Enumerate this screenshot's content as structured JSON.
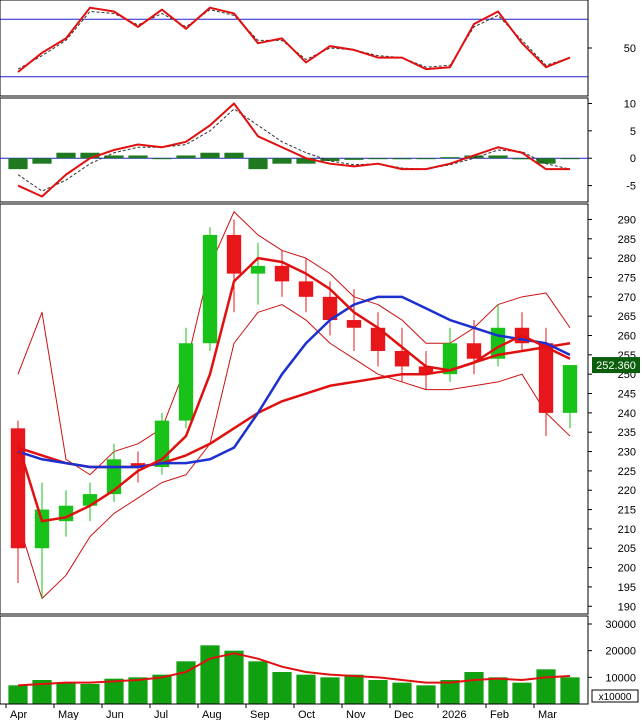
{
  "colors": {
    "frame": "#000000",
    "up_candle": "#19c219",
    "down_candle": "#e8161b",
    "ma_red": "#e01010",
    "ma_blue": "#1c2fcf",
    "band": "#cc1111",
    "hist_pos": "#1f7a1f",
    "rsi_ref": "#2222cc",
    "vol_bar": "#10a010",
    "price_tag_bg": "#0b5e0b",
    "price_tag_fg": "#ffffff"
  },
  "chart_data": [
    {
      "type": "line",
      "panel": "rsi",
      "y_tick_labels": [
        "50"
      ],
      "ylim": [
        0,
        100
      ],
      "reference_lines": [
        80,
        20
      ],
      "x": [
        "Apr",
        "Apr",
        "May",
        "May",
        "Jun",
        "Jun",
        "Jul",
        "Jul",
        "Aug",
        "Aug",
        "Sep",
        "Sep",
        "Oct",
        "Oct",
        "Nov",
        "Nov",
        "Dec",
        "Dec",
        "2026",
        "2026",
        "Feb",
        "Feb",
        "Mar",
        "Mar"
      ],
      "series": [
        {
          "values": [
            25,
            45,
            60,
            92,
            88,
            72,
            90,
            70,
            92,
            86,
            55,
            60,
            35,
            52,
            48,
            40,
            40,
            28,
            30,
            75,
            88,
            55,
            30,
            40
          ]
        },
        {
          "values": [
            28,
            42,
            58,
            88,
            86,
            74,
            86,
            72,
            90,
            84,
            58,
            58,
            38,
            50,
            48,
            42,
            40,
            30,
            32,
            72,
            84,
            58,
            32,
            40
          ]
        }
      ]
    },
    {
      "type": "line",
      "panel": "macd",
      "y_tick_labels": [
        "10",
        "5",
        "0",
        "-5"
      ],
      "ylim": [
        -8,
        11
      ],
      "x": [
        "Apr",
        "Apr",
        "May",
        "May",
        "Jun",
        "Jun",
        "Jul",
        "Jul",
        "Aug",
        "Aug",
        "Sep",
        "Sep",
        "Oct",
        "Oct",
        "Nov",
        "Nov",
        "Dec",
        "Dec",
        "2026",
        "2026",
        "Feb",
        "Feb",
        "Mar",
        "Mar"
      ],
      "series": [
        {
          "values": [
            -5,
            -7,
            -3,
            0,
            1.5,
            2.5,
            2,
            3,
            6,
            10,
            4,
            2,
            0,
            -1,
            -1.5,
            -1,
            -2,
            -2,
            -1,
            0.5,
            2,
            1,
            -2,
            -2
          ]
        },
        {
          "values": [
            -3,
            -6,
            -4,
            -1,
            1,
            2,
            2,
            2.5,
            5,
            9,
            6,
            3,
            1,
            -0.5,
            -1.2,
            -1,
            -1.8,
            -2,
            -1.2,
            0,
            1.5,
            1.2,
            -1,
            -2
          ]
        },
        {
          "values": [
            -2,
            -1,
            1,
            1,
            0.5,
            0.5,
            0,
            0.5,
            1,
            1,
            -2,
            -1,
            -1,
            -0.5,
            -0.3,
            0,
            -0.2,
            0,
            0.2,
            0.5,
            0.5,
            -0.2,
            -1,
            0
          ]
        }
      ]
    },
    {
      "type": "candlestick",
      "panel": "price",
      "ylim": [
        188,
        294
      ],
      "y_tick_labels": [
        "290",
        "285",
        "280",
        "275",
        "270",
        "265",
        "260",
        "255",
        "250",
        "245",
        "240",
        "235",
        "230",
        "225",
        "220",
        "215",
        "210",
        "205",
        "200",
        "195",
        "190"
      ],
      "last_price_label": "252.360",
      "candles": [
        {
          "x": "Apr",
          "o": 236,
          "h": 238,
          "l": 196,
          "c": 205
        },
        {
          "x": "Apr",
          "o": 205,
          "h": 222,
          "l": 192,
          "c": 215
        },
        {
          "x": "May",
          "o": 212,
          "h": 220,
          "l": 208,
          "c": 216
        },
        {
          "x": "May",
          "o": 216,
          "h": 222,
          "l": 212,
          "c": 219
        },
        {
          "x": "Jun",
          "o": 219,
          "h": 232,
          "l": 217,
          "c": 228
        },
        {
          "x": "Jun",
          "o": 227,
          "h": 230,
          "l": 222,
          "c": 226
        },
        {
          "x": "Jul",
          "o": 226,
          "h": 240,
          "l": 224,
          "c": 238
        },
        {
          "x": "Jul",
          "o": 238,
          "h": 262,
          "l": 236,
          "c": 258
        },
        {
          "x": "Aug",
          "o": 258,
          "h": 288,
          "l": 256,
          "c": 286
        },
        {
          "x": "Aug",
          "o": 286,
          "h": 290,
          "l": 266,
          "c": 276
        },
        {
          "x": "Sep",
          "o": 276,
          "h": 284,
          "l": 268,
          "c": 278
        },
        {
          "x": "Sep",
          "o": 278,
          "h": 282,
          "l": 270,
          "c": 274
        },
        {
          "x": "Oct",
          "o": 274,
          "h": 280,
          "l": 266,
          "c": 270
        },
        {
          "x": "Oct",
          "o": 270,
          "h": 274,
          "l": 260,
          "c": 264
        },
        {
          "x": "Nov",
          "o": 264,
          "h": 272,
          "l": 256,
          "c": 262
        },
        {
          "x": "Nov",
          "o": 262,
          "h": 266,
          "l": 252,
          "c": 256
        },
        {
          "x": "Dec",
          "o": 256,
          "h": 262,
          "l": 248,
          "c": 252
        },
        {
          "x": "Dec",
          "o": 252,
          "h": 256,
          "l": 246,
          "c": 250
        },
        {
          "x": "2026",
          "o": 250,
          "h": 262,
          "l": 248,
          "c": 258
        },
        {
          "x": "2026",
          "o": 258,
          "h": 264,
          "l": 250,
          "c": 254
        },
        {
          "x": "Feb",
          "o": 254,
          "h": 268,
          "l": 252,
          "c": 262
        },
        {
          "x": "Feb",
          "o": 262,
          "h": 266,
          "l": 256,
          "c": 258
        },
        {
          "x": "Mar",
          "o": 258,
          "h": 262,
          "l": 234,
          "c": 240
        },
        {
          "x": "Mar",
          "o": 240,
          "h": 252,
          "l": 236,
          "c": 252.36
        }
      ],
      "ma_red_short": [
        232,
        212,
        213,
        216,
        220,
        225,
        228,
        234,
        250,
        274,
        280,
        279,
        276,
        272,
        266,
        262,
        257,
        252,
        251,
        253,
        257,
        260,
        257,
        254
      ],
      "ma_red_long": [
        231,
        229,
        227,
        226,
        226,
        226,
        227,
        229,
        232,
        236,
        240,
        243,
        245,
        247,
        248,
        249,
        250,
        250,
        251,
        253,
        255,
        256,
        257,
        258
      ],
      "ma_blue": [
        230,
        228,
        227,
        226,
        226,
        226,
        227,
        227,
        228,
        231,
        240,
        250,
        258,
        264,
        268,
        270,
        270,
        267,
        264,
        262,
        260,
        259,
        258,
        255
      ],
      "band_upper": [
        250,
        266,
        228,
        224,
        230,
        232,
        236,
        252,
        278,
        292,
        286,
        282,
        280,
        276,
        270,
        268,
        264,
        258,
        258,
        262,
        268,
        270,
        271,
        262
      ],
      "band_lower": [
        212,
        192,
        198,
        208,
        214,
        218,
        222,
        224,
        232,
        258,
        266,
        268,
        264,
        258,
        254,
        250,
        248,
        246,
        246,
        247,
        248,
        250,
        240,
        234
      ]
    },
    {
      "type": "bar",
      "panel": "volume",
      "ylim": [
        0,
        33000
      ],
      "y_tick_labels": [
        "30000",
        "20000",
        "10000"
      ],
      "unit_label": "x10000",
      "x": [
        "Apr",
        "Apr",
        "May",
        "May",
        "Jun",
        "Jun",
        "Jul",
        "Jul",
        "Aug",
        "Aug",
        "Sep",
        "Sep",
        "Oct",
        "Oct",
        "Nov",
        "Nov",
        "Dec",
        "Dec",
        "2026",
        "2026",
        "Feb",
        "Feb",
        "Mar",
        "Mar"
      ],
      "values": [
        7000,
        9000,
        8000,
        7500,
        9500,
        10000,
        11000,
        16000,
        22000,
        20000,
        16000,
        12000,
        11000,
        10000,
        11000,
        9000,
        8000,
        7000,
        9000,
        12000,
        10000,
        8000,
        13000,
        10000
      ],
      "ma": [
        7000,
        7500,
        8000,
        8000,
        8500,
        9000,
        10000,
        12000,
        17000,
        19000,
        17000,
        14000,
        12000,
        11000,
        10500,
        10000,
        9000,
        8000,
        8000,
        9000,
        9500,
        9000,
        10000,
        10500
      ]
    }
  ],
  "x_axis": {
    "months": [
      {
        "label": "Apr",
        "i": 0
      },
      {
        "label": "May",
        "i": 2
      },
      {
        "label": "Jun",
        "i": 4
      },
      {
        "label": "Jul",
        "i": 6
      },
      {
        "label": "Aug",
        "i": 8
      },
      {
        "label": "Sep",
        "i": 10
      },
      {
        "label": "Oct",
        "i": 12
      },
      {
        "label": "Nov",
        "i": 14
      },
      {
        "label": "Dec",
        "i": 16
      },
      {
        "label": "2026",
        "i": 18
      },
      {
        "label": "Feb",
        "i": 20
      },
      {
        "label": "Mar",
        "i": 22
      }
    ]
  }
}
